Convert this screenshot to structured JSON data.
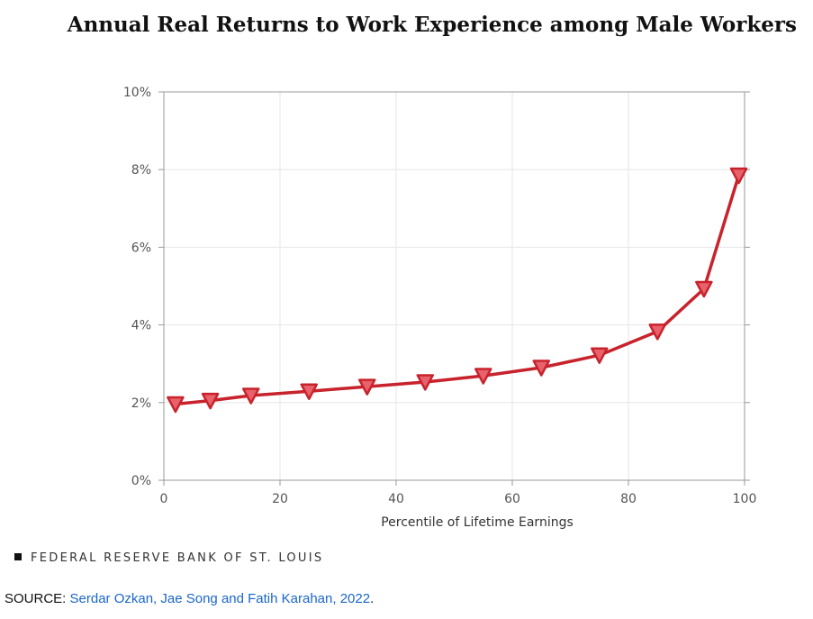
{
  "title": "Annual Real Returns to Work Experience among Male Workers",
  "attribution": "FEDERAL RESERVE BANK OF ST. LOUIS",
  "source": {
    "label": "SOURCE:",
    "link_text": "Serdar Ozkan, Jae Song and Fatih Karahan, 2022",
    "suffix": "."
  },
  "colors": {
    "series": "#c8232c",
    "marker_fill": "#e8616b",
    "grid": "#e6e6e6",
    "axis": "#999999"
  },
  "chart_data": {
    "type": "line",
    "title": "Annual Real Returns to Work Experience among Male Workers",
    "xlabel": "Percentile of Lifetime Earnings",
    "ylabel": "",
    "xlim": [
      0,
      100
    ],
    "ylim": [
      0,
      10
    ],
    "x_ticks": [
      0,
      20,
      40,
      60,
      80,
      100
    ],
    "y_ticks": [
      0,
      2,
      4,
      6,
      8,
      10
    ],
    "y_tick_labels": [
      "0%",
      "2%",
      "4%",
      "6%",
      "8%",
      "10%"
    ],
    "grid": true,
    "legend": "none",
    "series": [
      {
        "x": [
          2,
          8,
          15,
          25,
          35,
          45,
          55,
          65,
          75,
          85,
          93,
          99
        ],
        "y": [
          1.96,
          2.05,
          2.18,
          2.29,
          2.41,
          2.53,
          2.69,
          2.9,
          3.22,
          3.83,
          4.93,
          7.85
        ]
      }
    ]
  }
}
